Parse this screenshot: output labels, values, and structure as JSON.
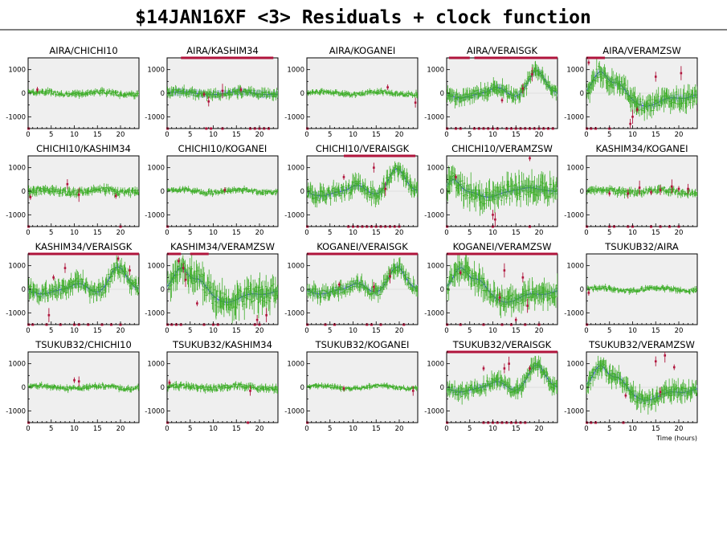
{
  "title": "$14JAN16XF <3> Residuals + clock function",
  "xlabel": "Time (hours)",
  "colors": {
    "background": "#ffffff",
    "plot_fill": "#efefef",
    "good_points": "#3fae2a",
    "flagged_points": "#b0143c",
    "clock_line": "#2c3fd6",
    "clock_band": "#c6cdee"
  },
  "chart_data": {
    "type": "scatter",
    "layout": {
      "rows": 4,
      "cols": 5
    },
    "xlim": [
      0,
      24
    ],
    "ylim": [
      -1500,
      1500
    ],
    "xticks": [
      0,
      5,
      10,
      15,
      20
    ],
    "yticks": [
      -1000,
      0,
      1000
    ],
    "panels": [
      {
        "title": "AIRA/CHICHI10",
        "shape": "flat",
        "amp": 80,
        "has_model": false,
        "flagged": [
          {
            "x": 2.0,
            "y": 150
          }
        ],
        "flag_bar": [],
        "bottom_marks": [
          0.1
        ]
      },
      {
        "title": "AIRA/KASHIM34",
        "shape": "flat",
        "amp": 120,
        "has_model": true,
        "flagged": [
          {
            "x": 8.0,
            "y": -50
          },
          {
            "x": 9.0,
            "y": -350
          },
          {
            "x": 12.0,
            "y": 100
          },
          {
            "x": 16.0,
            "y": 150
          }
        ],
        "flag_bar": [
          [
            3,
            23
          ]
        ],
        "bottom_marks": [
          0.1,
          8.5,
          9.5,
          12,
          18,
          19,
          20,
          21,
          22
        ]
      },
      {
        "title": "AIRA/KOGANEI",
        "shape": "flat",
        "amp": 70,
        "has_model": false,
        "flagged": [
          {
            "x": 17.5,
            "y": 250
          },
          {
            "x": 23.5,
            "y": -400
          }
        ],
        "flag_bar": [],
        "bottom_marks": [
          0.1
        ]
      },
      {
        "title": "AIRA/VERAISGK",
        "shape": "isgk",
        "amp": 180,
        "has_model": true,
        "flagged": [
          {
            "x": 12.0,
            "y": -300
          },
          {
            "x": 16.5,
            "y": 200
          },
          {
            "x": 18.5,
            "y": 800
          }
        ],
        "flag_bar": [
          [
            0.5,
            5
          ],
          [
            6,
            24
          ]
        ],
        "bottom_marks": [
          0.1,
          2,
          3,
          6,
          7,
          8,
          9,
          10,
          11,
          13,
          14,
          15,
          16,
          17,
          18,
          19,
          20,
          21,
          22,
          23
        ]
      },
      {
        "title": "AIRA/VERAMZSW",
        "shape": "mzsw",
        "amp": 260,
        "has_model": true,
        "flagged": [
          {
            "x": 0.5,
            "y": 1300
          },
          {
            "x": 9.5,
            "y": -1300
          },
          {
            "x": 10.0,
            "y": -1000
          },
          {
            "x": 11.0,
            "y": -700
          },
          {
            "x": 15.0,
            "y": 700
          },
          {
            "x": 20.5,
            "y": 850
          }
        ],
        "flag_bar": [
          [
            0,
            4
          ]
        ],
        "bottom_marks": [
          0.1,
          1,
          2,
          5
        ]
      },
      {
        "title": "CHICHI10/KASHIM34",
        "shape": "flat",
        "amp": 110,
        "has_model": false,
        "flagged": [
          {
            "x": 0.5,
            "y": -250
          },
          {
            "x": 8.5,
            "y": 300
          },
          {
            "x": 11.0,
            "y": -150
          },
          {
            "x": 19.0,
            "y": -200
          }
        ],
        "flag_bar": [],
        "bottom_marks": [
          0.1,
          20
        ]
      },
      {
        "title": "CHICHI10/KOGANEI",
        "shape": "flat",
        "amp": 70,
        "has_model": false,
        "flagged": [
          {
            "x": 12.5,
            "y": 50
          }
        ],
        "flag_bar": [],
        "bottom_marks": [
          0.1
        ]
      },
      {
        "title": "CHICHI10/VERAISGK",
        "shape": "isgk",
        "amp": 220,
        "has_model": true,
        "flagged": [
          {
            "x": 8.0,
            "y": 600
          },
          {
            "x": 14.5,
            "y": 1000
          },
          {
            "x": 17.0,
            "y": 100
          }
        ],
        "flag_bar": [
          [
            8,
            23.5
          ]
        ],
        "bottom_marks": [
          0.1,
          9,
          10,
          11,
          12,
          13,
          14,
          15,
          16,
          17,
          18,
          19,
          20
        ]
      },
      {
        "title": "CHICHI10/VERAMZSW",
        "shape": "mzsw2",
        "amp": 330,
        "has_model": true,
        "flagged": [
          {
            "x": 2.0,
            "y": 600
          },
          {
            "x": 10.0,
            "y": -1000
          },
          {
            "x": 10.5,
            "y": -1200
          },
          {
            "x": 18.0,
            "y": 1400
          }
        ],
        "flag_bar": [],
        "bottom_marks": [
          0.1,
          10,
          18
        ]
      },
      {
        "title": "KASHIM34/KOGANEI",
        "shape": "flat",
        "amp": 100,
        "has_model": false,
        "flagged": [
          {
            "x": 5.0,
            "y": -100
          },
          {
            "x": 9.0,
            "y": -100
          },
          {
            "x": 11.5,
            "y": 150
          },
          {
            "x": 14.0,
            "y": -50
          },
          {
            "x": 16.0,
            "y": 50
          },
          {
            "x": 18.5,
            "y": 200
          },
          {
            "x": 20.0,
            "y": 100
          },
          {
            "x": 22.0,
            "y": 100
          }
        ],
        "flag_bar": [],
        "bottom_marks": [
          0.1,
          5,
          6,
          9,
          10,
          14,
          16,
          18,
          20
        ]
      },
      {
        "title": "KASHIM34/VERAISGK",
        "shape": "isgk",
        "amp": 230,
        "has_model": true,
        "flagged": [
          {
            "x": 5.5,
            "y": 500
          },
          {
            "x": 8.0,
            "y": 900
          },
          {
            "x": 4.5,
            "y": -1100
          },
          {
            "x": 19.5,
            "y": 1300
          },
          {
            "x": 22.0,
            "y": 800
          }
        ],
        "flag_bar": [
          [
            0,
            24
          ]
        ],
        "bottom_marks": [
          0.1,
          1,
          4,
          7,
          10,
          11,
          13,
          16,
          18,
          20
        ]
      },
      {
        "title": "KASHIM34/VERAMZSW",
        "shape": "mzsw",
        "amp": 380,
        "has_model": true,
        "flagged": [
          {
            "x": 2.5,
            "y": 1200
          },
          {
            "x": 3.5,
            "y": 900
          },
          {
            "x": 4.0,
            "y": 400
          },
          {
            "x": 6.5,
            "y": -600
          },
          {
            "x": 19.5,
            "y": -1300
          },
          {
            "x": 21.5,
            "y": -1100
          }
        ],
        "flag_bar": [
          [
            0,
            3
          ],
          [
            5,
            9
          ]
        ],
        "bottom_marks": [
          0.1,
          1,
          2,
          3,
          8,
          10,
          11,
          19,
          20
        ]
      },
      {
        "title": "KOGANEI/VERAISGK",
        "shape": "isgk",
        "amp": 190,
        "has_model": true,
        "flagged": [
          {
            "x": 7.0,
            "y": 200
          },
          {
            "x": 14.5,
            "y": 100
          },
          {
            "x": 18.0,
            "y": 550
          }
        ],
        "flag_bar": [
          [
            0,
            24
          ]
        ],
        "bottom_marks": [
          0.1,
          4,
          6,
          13,
          14,
          16,
          21
        ]
      },
      {
        "title": "KOGANEI/VERAMZSW",
        "shape": "mzsw",
        "amp": 300,
        "has_model": true,
        "flagged": [
          {
            "x": 3.0,
            "y": 700
          },
          {
            "x": 11.5,
            "y": -350
          },
          {
            "x": 12.5,
            "y": 800
          },
          {
            "x": 15.0,
            "y": -1300
          },
          {
            "x": 16.5,
            "y": 500
          },
          {
            "x": 17.5,
            "y": -700
          }
        ],
        "flag_bar": [
          [
            0,
            24
          ]
        ],
        "bottom_marks": [
          0.1,
          3,
          8,
          12,
          14,
          17,
          20
        ]
      },
      {
        "title": "TSUKUB32/AIRA",
        "shape": "flat",
        "amp": 70,
        "has_model": false,
        "flagged": [
          {
            "x": 0.5,
            "y": -150
          }
        ],
        "flag_bar": [],
        "bottom_marks": [
          0.1
        ]
      },
      {
        "title": "TSUKUB32/CHICHI10",
        "shape": "flat",
        "amp": 70,
        "has_model": false,
        "flagged": [
          {
            "x": 10.0,
            "y": 300
          },
          {
            "x": 11.0,
            "y": 250
          }
        ],
        "flag_bar": [],
        "bottom_marks": [
          0.1
        ]
      },
      {
        "title": "TSUKUB32/KASHIM34",
        "shape": "flat",
        "amp": 90,
        "has_model": false,
        "flagged": [
          {
            "x": 0.5,
            "y": 200
          },
          {
            "x": 18.0,
            "y": -150
          }
        ],
        "flag_bar": [],
        "bottom_marks": [
          0.1,
          17.5
        ]
      },
      {
        "title": "TSUKUB32/KOGANEI",
        "shape": "flat",
        "amp": 60,
        "has_model": false,
        "flagged": [
          {
            "x": 8.0,
            "y": -50
          },
          {
            "x": 23.0,
            "y": -150
          }
        ],
        "flag_bar": [],
        "bottom_marks": [
          0.1
        ]
      },
      {
        "title": "TSUKUB32/VERAISGK",
        "shape": "isgk",
        "amp": 200,
        "has_model": true,
        "flagged": [
          {
            "x": 8.0,
            "y": 800
          },
          {
            "x": 12.5,
            "y": 800
          },
          {
            "x": 13.5,
            "y": 1000
          },
          {
            "x": 18.0,
            "y": 800
          }
        ],
        "flag_bar": [
          [
            0,
            24
          ]
        ],
        "bottom_marks": [
          0.1,
          8,
          9,
          10,
          11,
          12,
          13,
          14,
          15,
          16,
          17
        ]
      },
      {
        "title": "TSUKUB32/VERAMZSW",
        "shape": "mzsw",
        "amp": 240,
        "has_model": true,
        "flagged": [
          {
            "x": 8.5,
            "y": -350
          },
          {
            "x": 15.0,
            "y": 1100
          },
          {
            "x": 17.0,
            "y": 1350
          },
          {
            "x": 19.0,
            "y": 850
          },
          {
            "x": 16.0,
            "y": -200
          }
        ],
        "flag_bar": [],
        "bottom_marks": [
          0.1,
          1,
          2,
          8
        ]
      }
    ]
  }
}
